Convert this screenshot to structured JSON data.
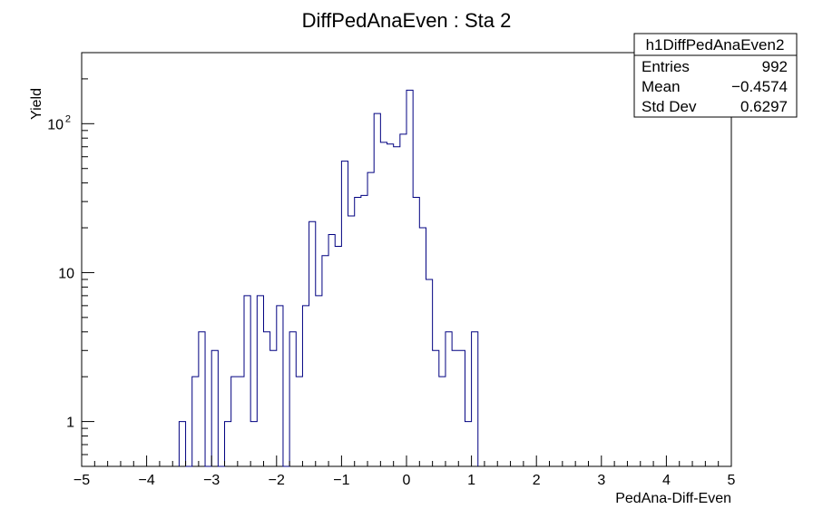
{
  "chart_data": {
    "type": "bar",
    "title": "DiffPedAnaEven : Sta 2",
    "xlabel": "PedAna-Diff-Even",
    "ylabel": "Yield",
    "xlim": [
      -5,
      5
    ],
    "ylim": [
      0.5,
      300
    ],
    "yscale": "log",
    "grid": false,
    "bin_width": 0.1,
    "line_color": "#000080",
    "xticks": [
      -5,
      -4,
      -3,
      -2,
      -1,
      0,
      1,
      2,
      3,
      4,
      5
    ],
    "xtick_labels": [
      "−5",
      "−4",
      "−3",
      "−2",
      "−1",
      "0",
      "1",
      "2",
      "3",
      "4",
      "5"
    ],
    "ytick_labels": [
      {
        "value": 1,
        "base": "1",
        "exp": ""
      },
      {
        "value": 10,
        "base": "10",
        "exp": ""
      },
      {
        "value": 100,
        "base": "10",
        "exp": "2"
      }
    ],
    "bins": [
      {
        "x": -3.5,
        "y": 1
      },
      {
        "x": -3.4,
        "y": 0
      },
      {
        "x": -3.3,
        "y": 2
      },
      {
        "x": -3.2,
        "y": 4
      },
      {
        "x": -3.1,
        "y": 0
      },
      {
        "x": -3.0,
        "y": 3
      },
      {
        "x": -2.9,
        "y": 0
      },
      {
        "x": -2.8,
        "y": 1
      },
      {
        "x": -2.7,
        "y": 2
      },
      {
        "x": -2.6,
        "y": 2
      },
      {
        "x": -2.5,
        "y": 7
      },
      {
        "x": -2.4,
        "y": 1
      },
      {
        "x": -2.3,
        "y": 7
      },
      {
        "x": -2.2,
        "y": 4
      },
      {
        "x": -2.1,
        "y": 3
      },
      {
        "x": -2.0,
        "y": 6
      },
      {
        "x": -1.9,
        "y": 0
      },
      {
        "x": -1.8,
        "y": 4
      },
      {
        "x": -1.7,
        "y": 2
      },
      {
        "x": -1.6,
        "y": 6
      },
      {
        "x": -1.5,
        "y": 22
      },
      {
        "x": -1.4,
        "y": 7
      },
      {
        "x": -1.3,
        "y": 13
      },
      {
        "x": -1.2,
        "y": 18
      },
      {
        "x": -1.1,
        "y": 15
      },
      {
        "x": -1.0,
        "y": 56
      },
      {
        "x": -0.9,
        "y": 24
      },
      {
        "x": -0.8,
        "y": 32
      },
      {
        "x": -0.7,
        "y": 33
      },
      {
        "x": -0.6,
        "y": 47
      },
      {
        "x": -0.5,
        "y": 117
      },
      {
        "x": -0.4,
        "y": 75
      },
      {
        "x": -0.3,
        "y": 73
      },
      {
        "x": -0.2,
        "y": 70
      },
      {
        "x": -0.1,
        "y": 85
      },
      {
        "x": 0.0,
        "y": 168
      },
      {
        "x": 0.1,
        "y": 32
      },
      {
        "x": 0.2,
        "y": 20
      },
      {
        "x": 0.3,
        "y": 9
      },
      {
        "x": 0.4,
        "y": 3
      },
      {
        "x": 0.5,
        "y": 2
      },
      {
        "x": 0.6,
        "y": 4
      },
      {
        "x": 0.7,
        "y": 3
      },
      {
        "x": 0.8,
        "y": 3
      },
      {
        "x": 0.9,
        "y": 1
      },
      {
        "x": 1.0,
        "y": 4
      }
    ]
  },
  "stats": {
    "name": "h1DiffPedAnaEven2",
    "rows": [
      {
        "label": "Entries",
        "value": "992"
      },
      {
        "label": "Mean",
        "value": "−0.4574"
      },
      {
        "label": "Std Dev",
        "value": "0.6297"
      }
    ]
  }
}
